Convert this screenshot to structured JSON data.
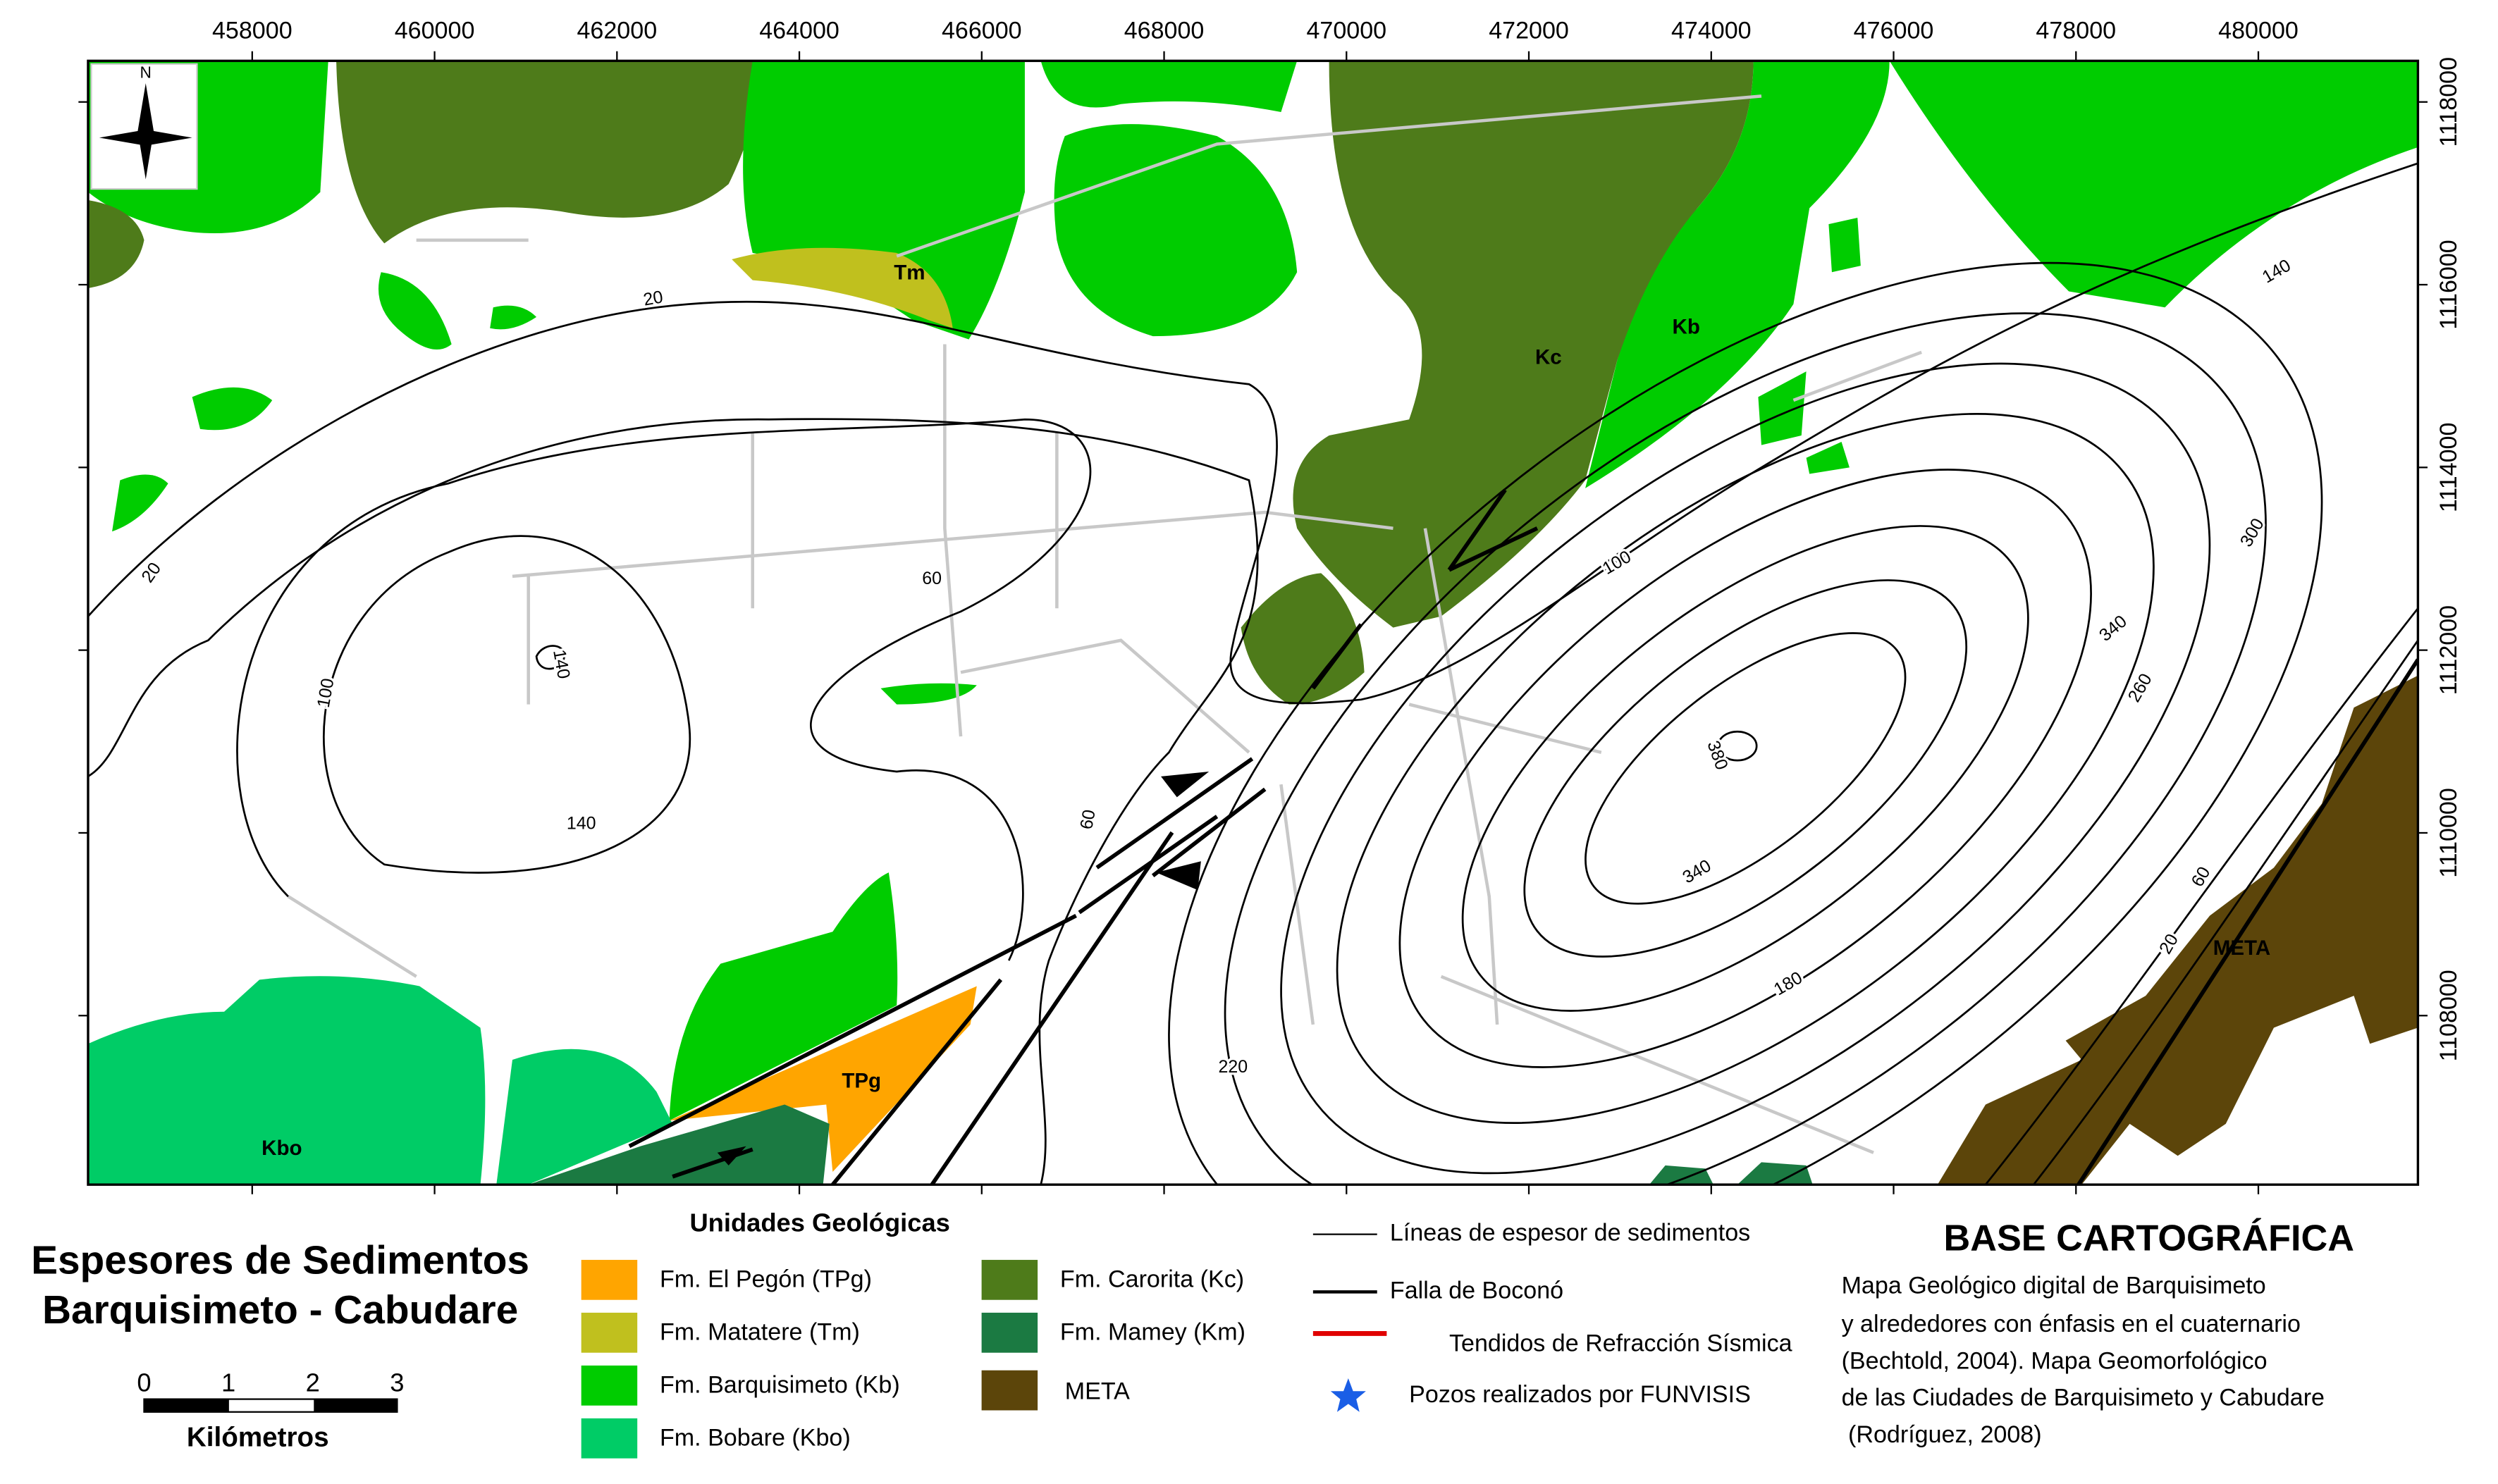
{
  "map": {
    "xlim": [
      456200,
      481750
    ],
    "ylim": [
      1106150,
      1118450
    ],
    "xticks": [
      458000,
      460000,
      462000,
      464000,
      466000,
      468000,
      470000,
      472000,
      474000,
      476000,
      478000,
      480000
    ],
    "yticks": [
      1108000,
      1110000,
      1112000,
      1114000,
      1116000,
      1118000
    ],
    "north": "N",
    "unit_labels": [
      "Tm",
      "Kc",
      "Kb",
      "TPg",
      "Kbo",
      "META"
    ],
    "contour_labels": [
      20,
      20,
      60,
      100,
      140,
      140,
      60,
      100,
      180,
      220,
      340,
      380,
      340,
      300,
      260,
      140,
      20,
      60
    ]
  },
  "title": [
    "Espesores de Sedimentos",
    "Barquisimeto - Cabudare"
  ],
  "scale_bar": {
    "ticks": [
      0,
      1,
      2,
      3
    ],
    "unit": "Kilómetros"
  },
  "legend_units": {
    "title": "Unidades Geológicas",
    "items": [
      "Fm. El Pegón (TPg)",
      "Fm. Matatere (Tm)",
      "Fm. Barquisimeto (Kb)",
      "Fm. Bobare (Kbo)",
      "Fm. Carorita (Kc)",
      "Fm. Mamey (Km)",
      "META"
    ]
  },
  "legend_lines": [
    "Líneas de espesor de sedimentos",
    "Falla de Boconó",
    "Tendidos de Refracción Sísmica",
    "Pozos realizados por FUNVISIS"
  ],
  "base": {
    "title": "BASE CARTOGRÁFICA",
    "lines": [
      "Mapa Geológico digital de Barquisimeto",
      "y alrededores con énfasis en el cuaternario",
      "(Bechtold, 2004). Mapa Geomorfológico",
      "de las Ciudades de Barquisimeto y Cabudare",
      " (Rodríguez, 2008)"
    ]
  }
}
